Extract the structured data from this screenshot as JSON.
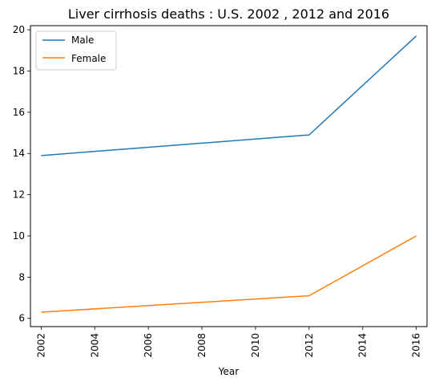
{
  "chart_data": {
    "type": "line",
    "title": "Liver cirrhosis deaths : U.S. 2002 , 2012 and 2016",
    "xlabel": "Year",
    "ylabel": "",
    "x": [
      2002,
      2012,
      2016
    ],
    "xlim": [
      2001.6,
      2016.4
    ],
    "ylim": [
      5.6,
      20.2
    ],
    "xticks": [
      "2002",
      "2004",
      "2006",
      "2008",
      "2010",
      "2012",
      "2014",
      "2016"
    ],
    "yticks": [
      "6",
      "8",
      "10",
      "12",
      "14",
      "16",
      "18",
      "20"
    ],
    "xtick_rotation": "vertical",
    "grid": false,
    "legend_position": "top-left",
    "series": [
      {
        "name": "Male",
        "color": "#1f77b4",
        "values": [
          13.9,
          14.9,
          19.7
        ]
      },
      {
        "name": "Female",
        "color": "#ff7f0e",
        "values": [
          6.3,
          7.1,
          10.0
        ]
      }
    ]
  }
}
